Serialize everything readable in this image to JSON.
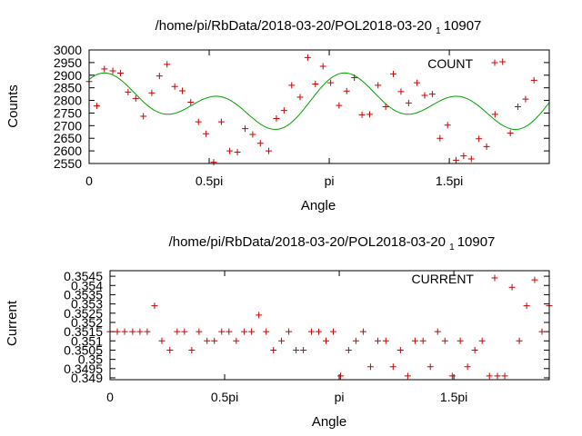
{
  "chart_data": [
    {
      "type": "scatter",
      "title": "/home/pi/RbData/2018-03-20/POL2018-03-20 1 10907",
      "title_parts": [
        "/home/pi/RbData/2018-03-20/POL2018-03-20 ",
        "1",
        "10907"
      ],
      "xlabel": "Angle",
      "ylabel": "Counts",
      "xlim": [
        0,
        6.02
      ],
      "ylim": [
        2550,
        3000
      ],
      "x_ticks": [
        {
          "value": 0,
          "label": "0"
        },
        {
          "value": 1.5708,
          "label": "0.5pi"
        },
        {
          "value": 3.1416,
          "label": "pi"
        },
        {
          "value": 4.7124,
          "label": "1.5pi"
        }
      ],
      "y_ticks": [
        {
          "value": 2550,
          "label": "2550"
        },
        {
          "value": 2600,
          "label": "2600"
        },
        {
          "value": 2650,
          "label": "2650"
        },
        {
          "value": 2700,
          "label": "2700"
        },
        {
          "value": 2750,
          "label": "2750"
        },
        {
          "value": 2800,
          "label": "2800"
        },
        {
          "value": 2850,
          "label": "2850"
        },
        {
          "value": 2900,
          "label": "2900"
        },
        {
          "value": 2950,
          "label": "2950"
        },
        {
          "value": 3000,
          "label": "3000"
        }
      ],
      "legend": "top-right",
      "grid": false,
      "series": [
        {
          "name": "COUNT",
          "color": "#cc0000",
          "marker": "plus",
          "points": [
            [
              0.0,
              2875
            ],
            [
              0.1,
              2778
            ],
            [
              0.2,
              2925
            ],
            [
              0.31,
              2917
            ],
            [
              0.41,
              2908
            ],
            [
              0.51,
              2833
            ],
            [
              0.61,
              2808
            ],
            [
              0.71,
              2737
            ],
            [
              0.82,
              2830
            ],
            [
              0.92,
              2897
            ],
            [
              1.02,
              2943
            ],
            [
              1.12,
              2855
            ],
            [
              1.22,
              2838
            ],
            [
              1.33,
              2793
            ],
            [
              1.43,
              2715
            ],
            [
              1.53,
              2668
            ],
            [
              1.63,
              2555
            ],
            [
              1.73,
              2715
            ],
            [
              1.84,
              2600
            ],
            [
              1.94,
              2595
            ],
            [
              2.04,
              2688
            ],
            [
              2.14,
              2665
            ],
            [
              2.24,
              2630
            ],
            [
              2.35,
              2600
            ],
            [
              2.45,
              2728
            ],
            [
              2.55,
              2760
            ],
            [
              2.65,
              2860
            ],
            [
              2.76,
              2813
            ],
            [
              2.86,
              2970
            ],
            [
              2.96,
              2865
            ],
            [
              3.06,
              2935
            ],
            [
              3.16,
              2870
            ],
            [
              3.27,
              2780
            ],
            [
              3.37,
              2837
            ],
            [
              3.47,
              2890
            ],
            [
              3.57,
              2743
            ],
            [
              3.67,
              2745
            ],
            [
              3.78,
              2860
            ],
            [
              3.88,
              2775
            ],
            [
              3.98,
              2905
            ],
            [
              4.08,
              2835
            ],
            [
              4.18,
              2790
            ],
            [
              4.29,
              2870
            ],
            [
              4.39,
              2820
            ],
            [
              4.49,
              2825
            ],
            [
              4.59,
              2650
            ],
            [
              4.69,
              2702
            ],
            [
              4.8,
              2563
            ],
            [
              4.9,
              2580
            ],
            [
              5.0,
              2568
            ],
            [
              5.1,
              2648
            ],
            [
              5.2,
              2617
            ],
            [
              5.31,
              2745
            ],
            [
              5.41,
              2953
            ],
            [
              5.51,
              2670
            ],
            [
              5.61,
              2775
            ],
            [
              5.71,
              2805
            ],
            [
              5.82,
              2880
            ]
          ]
        }
      ],
      "fit": {
        "name": "",
        "color": "#00a000",
        "model": "c + a1*cos(2x) + b1*sin(2x) + a2*cos(4x) + b2*sin(4x)",
        "params": {
          "c": 2790,
          "a1": 35,
          "b1": 43,
          "a2": 58,
          "b2": 41
        },
        "x_range": [
          0,
          6.02
        ]
      }
    },
    {
      "type": "scatter",
      "title": "/home/pi/RbData/2018-03-20/POL2018-03-20 1 10907",
      "title_parts": [
        "/home/pi/RbData/2018-03-20/POL2018-03-20 ",
        "1",
        "10907"
      ],
      "xlabel": "Angle",
      "ylabel": "Current",
      "xlim": [
        0,
        6.02
      ],
      "ylim": [
        0.3489,
        0.3548
      ],
      "x_ticks": [
        {
          "value": 0,
          "label": "0"
        },
        {
          "value": 1.5708,
          "label": "0.5pi"
        },
        {
          "value": 3.1416,
          "label": "pi"
        },
        {
          "value": 4.7124,
          "label": "1.5pi"
        }
      ],
      "y_ticks": [
        {
          "value": 0.349,
          "label": "0.349"
        },
        {
          "value": 0.3495,
          "label": "0.3495"
        },
        {
          "value": 0.35,
          "label": "0.35"
        },
        {
          "value": 0.3505,
          "label": "0.3505"
        },
        {
          "value": 0.351,
          "label": "0.351"
        },
        {
          "value": 0.3515,
          "label": "0.3515"
        },
        {
          "value": 0.352,
          "label": "0.352"
        },
        {
          "value": 0.3525,
          "label": "0.3525"
        },
        {
          "value": 0.353,
          "label": "0.353"
        },
        {
          "value": 0.3535,
          "label": "0.3535"
        },
        {
          "value": 0.354,
          "label": "0.354"
        },
        {
          "value": 0.3545,
          "label": "0.3545"
        }
      ],
      "legend": "top-right",
      "grid": false,
      "series": [
        {
          "name": "CURRENT",
          "color": "#cc0000",
          "marker": "plus",
          "points": [
            [
              0.0,
              0.3515
            ],
            [
              0.1,
              0.3515
            ],
            [
              0.2,
              0.3515
            ],
            [
              0.31,
              0.3515
            ],
            [
              0.41,
              0.3515
            ],
            [
              0.51,
              0.3515
            ],
            [
              0.61,
              0.3529
            ],
            [
              0.71,
              0.351
            ],
            [
              0.82,
              0.3505
            ],
            [
              0.92,
              0.3515
            ],
            [
              1.02,
              0.3515
            ],
            [
              1.12,
              0.3505
            ],
            [
              1.22,
              0.3515
            ],
            [
              1.33,
              0.351
            ],
            [
              1.43,
              0.351
            ],
            [
              1.53,
              0.3515
            ],
            [
              1.63,
              0.3515
            ],
            [
              1.73,
              0.351
            ],
            [
              1.84,
              0.3515
            ],
            [
              1.94,
              0.3515
            ],
            [
              2.04,
              0.3524
            ],
            [
              2.14,
              0.3515
            ],
            [
              2.24,
              0.3505
            ],
            [
              2.35,
              0.351
            ],
            [
              2.45,
              0.3515
            ],
            [
              2.55,
              0.3505
            ],
            [
              2.65,
              0.3505
            ],
            [
              2.76,
              0.3515
            ],
            [
              2.86,
              0.3515
            ],
            [
              2.96,
              0.351
            ],
            [
              3.06,
              0.3515
            ],
            [
              3.16,
              0.3491
            ],
            [
              3.27,
              0.3505
            ],
            [
              3.37,
              0.351
            ],
            [
              3.47,
              0.3515
            ],
            [
              3.57,
              0.3496
            ],
            [
              3.67,
              0.351
            ],
            [
              3.78,
              0.351
            ],
            [
              3.88,
              0.3496
            ],
            [
              3.98,
              0.3505
            ],
            [
              4.08,
              0.3491
            ],
            [
              4.18,
              0.351
            ],
            [
              4.29,
              0.351
            ],
            [
              4.39,
              0.3496
            ],
            [
              4.49,
              0.3515
            ],
            [
              4.59,
              0.351
            ],
            [
              4.69,
              0.3491
            ],
            [
              4.8,
              0.351
            ],
            [
              4.9,
              0.3496
            ],
            [
              5.0,
              0.3505
            ],
            [
              5.1,
              0.351
            ],
            [
              5.2,
              0.3491
            ],
            [
              5.31,
              0.3491
            ],
            [
              5.41,
              0.3491
            ],
            [
              5.51,
              0.3539
            ],
            [
              5.61,
              0.351
            ],
            [
              5.71,
              0.3529
            ],
            [
              5.82,
              0.3543
            ],
            [
              5.92,
              0.3515
            ],
            [
              6.02,
              0.3529
            ]
          ]
        }
      ]
    }
  ]
}
